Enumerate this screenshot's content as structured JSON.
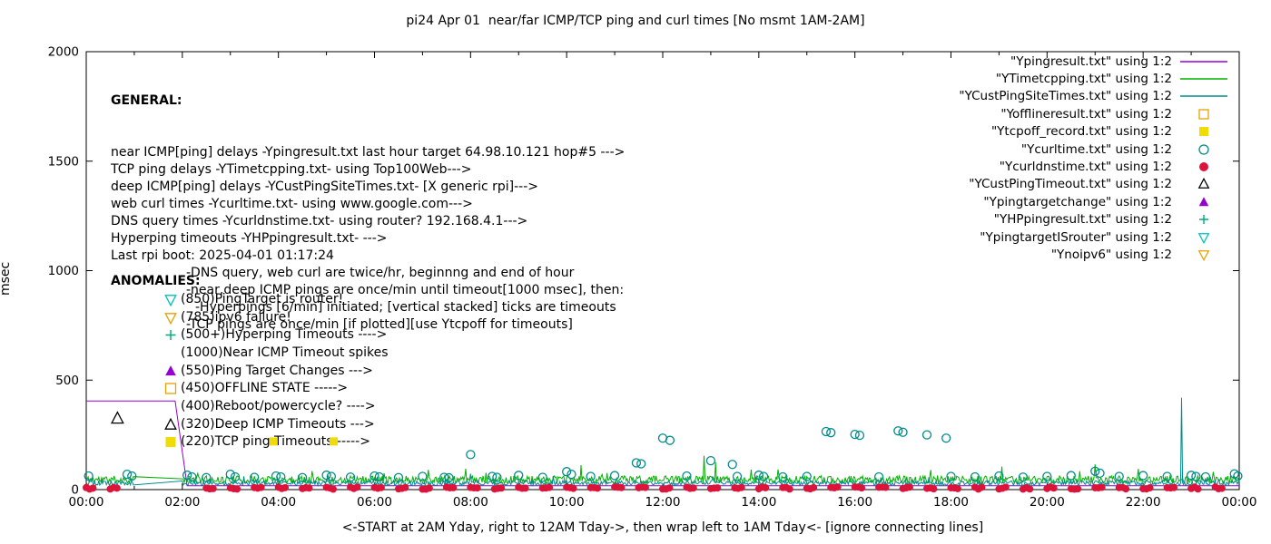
{
  "title": "pi24 Apr 01  near/far ICMP/TCP ping and curl times [No msmt 1AM-2AM]",
  "general": {
    "header": "GENERAL:",
    "lines": [
      {
        "text": "near ICMP[ping] delays -Ypingresult.txt last hour target 64.98.10.121 hop#5 --->",
        "indent": 0
      },
      {
        "text": "TCP ping delays -YTimetcpping.txt- using Top100Web--->",
        "indent": 0
      },
      {
        "text": "deep ICMP[ping] delays -YCustPingSiteTimes.txt- [X generic rpi]--->",
        "indent": 0
      },
      {
        "text": "web curl times -Ycurltime.txt- using www.google.com--->",
        "indent": 0
      },
      {
        "text": "DNS query times -Ycurldnstime.txt- using router? 192.168.4.1--->",
        "indent": 0
      },
      {
        "text": "Hyperping timeouts -YHPpingresult.txt- --->",
        "indent": 0
      },
      {
        "text": "Last rpi boot: 2025-04-01 01:17:24",
        "indent": 0
      },
      {
        "text": "-DNS query, web curl are twice/hr, beginnng and end of hour",
        "indent": 1
      },
      {
        "text": "-near,deep ICMP pings are once/min until timeout[1000 msec], then:",
        "indent": 1
      },
      {
        "text": "-Hyperpings [6/min] initiated; [vertical stacked] ticks are timeouts",
        "indent": 2
      },
      {
        "text": "-TCP pings are once/min [if plotted][use Ytcpoff for timeouts]",
        "indent": 1
      }
    ]
  },
  "anomalies": {
    "header": "ANOMALIES:",
    "rows": [
      {
        "marker": {
          "shape": "triangle-down-open",
          "color": "#00c0c0"
        },
        "text": "(850)PingTarget is router!"
      },
      {
        "marker": {
          "shape": "triangle-down-open",
          "color": "#e8a000"
        },
        "text": "(785)ipv6 failure!"
      },
      {
        "marker": {
          "shape": "plus",
          "color": "#00a878"
        },
        "text": "(500+)Hyperping Timeouts ---->"
      },
      {
        "marker": null,
        "text": "(1000)Near ICMP Timeout spikes"
      },
      {
        "marker": {
          "shape": "triangle-up-filled",
          "color": "#9400d3"
        },
        "text": "(550)Ping Target Changes --->"
      },
      {
        "marker": {
          "shape": "square-open",
          "color": "#e8a000"
        },
        "text": "(450)OFFLINE STATE ----->"
      },
      {
        "marker": null,
        "text": "(400)Reboot/powercycle? ---->"
      },
      {
        "marker": {
          "shape": "triangle-up-open",
          "color": "#000000"
        },
        "text": "(320)Deep ICMP Timeouts --->"
      },
      {
        "marker": {
          "shape": "square-filled",
          "color": "#f0dc00"
        },
        "text": "(220)TCP ping Timeouts ----->"
      }
    ]
  },
  "legend": {
    "entries": [
      {
        "label": "\"Ypingresult.txt\" using 1:2",
        "sample": {
          "kind": "line",
          "color": "#9400d3"
        }
      },
      {
        "label": "\"YTimetcpping.txt\" using 1:2",
        "sample": {
          "kind": "line",
          "color": "#00b000"
        }
      },
      {
        "label": "\"YCustPingSiteTimes.txt\" using 1:2",
        "sample": {
          "kind": "line",
          "color": "#008b8b"
        }
      },
      {
        "label": "\"Yofflineresult.txt\" using 1:2",
        "sample": {
          "kind": "marker",
          "shape": "square-open",
          "color": "#e8a000"
        }
      },
      {
        "label": "\"Ytcpoff_record.txt\" using 1:2",
        "sample": {
          "kind": "marker",
          "shape": "square-filled",
          "color": "#f0dc00"
        }
      },
      {
        "label": "\"Ycurltime.txt\" using 1:2",
        "sample": {
          "kind": "marker",
          "shape": "circle-open",
          "color": "#008b8b"
        }
      },
      {
        "label": "\"Ycurldnstime.txt\" using 1:2",
        "sample": {
          "kind": "marker",
          "shape": "circle-filled",
          "color": "#dc143c"
        }
      },
      {
        "label": "\"YCustPingTimeout.txt\" using 1:2",
        "sample": {
          "kind": "marker",
          "shape": "triangle-up-open",
          "color": "#000000"
        }
      },
      {
        "label": "\"Ypingtargetchange\" using 1:2",
        "sample": {
          "kind": "marker",
          "shape": "triangle-up-filled",
          "color": "#9400d3"
        }
      },
      {
        "label": "\"YHPpingresult.txt\" using 1:2",
        "sample": {
          "kind": "marker",
          "shape": "plus",
          "color": "#00a878"
        }
      },
      {
        "label": "\"YpingtargetISrouter\" using 1:2",
        "sample": {
          "kind": "marker",
          "shape": "triangle-down-open",
          "color": "#00c0c0"
        }
      },
      {
        "label": "\"Ynoipv6\" using 1:2",
        "sample": {
          "kind": "marker",
          "shape": "triangle-down-open",
          "color": "#e8a000"
        }
      }
    ]
  },
  "chart_data": {
    "type": "line",
    "title": "pi24 Apr 01  near/far ICMP/TCP ping and curl times [No msmt 1AM-2AM]",
    "xlabel": "<-START at 2AM Yday, right to 12AM Tday->, then wrap left to 1AM Tday<- [ignore connecting lines]",
    "ylabel": "msec",
    "xlim": [
      0,
      24
    ],
    "ylim": [
      0,
      2000
    ],
    "x_ticks": [
      "00:00",
      "02:00",
      "04:00",
      "06:00",
      "08:00",
      "10:00",
      "12:00",
      "14:00",
      "16:00",
      "18:00",
      "20:00",
      "22:00",
      "00:00"
    ],
    "y_ticks": [
      0,
      500,
      1000,
      1500,
      2000
    ],
    "grid": false,
    "legend_position": "top-right",
    "series": [
      {
        "name": "\"Ypingresult.txt\" using 1:2",
        "kind": "line",
        "color": "#9400d3",
        "points": [
          [
            0,
            405
          ],
          [
            1.85,
            405
          ],
          [
            2.1,
            18
          ],
          [
            24,
            18
          ]
        ]
      },
      {
        "name": "\"YTimetcpping.txt\" using 1:2",
        "kind": "noisy-line",
        "color": "#00b000",
        "base": 46,
        "amp": 17,
        "burst": 45,
        "seed": 11,
        "x0": 0,
        "x1": 24,
        "step": 0.02,
        "gap": [
          1.0,
          2.0
        ],
        "spikes": [
          [
            7.9,
            95
          ],
          [
            10.3,
            112
          ],
          [
            12.85,
            155
          ],
          [
            13.1,
            125
          ],
          [
            14.4,
            92
          ],
          [
            19.05,
            105
          ],
          [
            21.0,
            115
          ],
          [
            21.9,
            95
          ]
        ]
      },
      {
        "name": "\"YCustPingSiteTimes.txt\" using 1:2",
        "kind": "noisy-line",
        "color": "#008b8b",
        "base": 30,
        "amp": 11,
        "burst": 28,
        "seed": 5,
        "x0": 0,
        "x1": 24,
        "step": 0.02,
        "gap": [
          1.0,
          2.0
        ],
        "spikes": [
          [
            8.0,
            72
          ],
          [
            22.8,
            420
          ]
        ]
      },
      {
        "name": "\"Ycurltime.txt\" using 1:2",
        "kind": "scatter",
        "shape": "circle-open",
        "color": "#008b8b",
        "size": 4.5,
        "points": [
          [
            0.05,
            62
          ],
          [
            0.85,
            70
          ],
          [
            0.95,
            62
          ],
          [
            2.1,
            66
          ],
          [
            2.2,
            58
          ],
          [
            2.5,
            55
          ],
          [
            3.0,
            70
          ],
          [
            3.1,
            58
          ],
          [
            3.5,
            56
          ],
          [
            3.95,
            62
          ],
          [
            4.05,
            58
          ],
          [
            4.5,
            55
          ],
          [
            5.0,
            66
          ],
          [
            5.1,
            60
          ],
          [
            5.5,
            57
          ],
          [
            6.0,
            62
          ],
          [
            6.1,
            58
          ],
          [
            6.5,
            55
          ],
          [
            7.0,
            60
          ],
          [
            7.45,
            56
          ],
          [
            7.55,
            54
          ],
          [
            8.0,
            160
          ],
          [
            8.45,
            60
          ],
          [
            8.55,
            56
          ],
          [
            9.0,
            65
          ],
          [
            9.5,
            56
          ],
          [
            10.0,
            82
          ],
          [
            10.1,
            70
          ],
          [
            10.5,
            60
          ],
          [
            11.0,
            64
          ],
          [
            11.45,
            122
          ],
          [
            11.55,
            118
          ],
          [
            12.0,
            235
          ],
          [
            12.15,
            225
          ],
          [
            12.5,
            62
          ],
          [
            13.0,
            132
          ],
          [
            13.45,
            115
          ],
          [
            13.55,
            60
          ],
          [
            14.0,
            66
          ],
          [
            14.1,
            60
          ],
          [
            14.5,
            58
          ],
          [
            15.0,
            60
          ],
          [
            15.4,
            265
          ],
          [
            15.5,
            260
          ],
          [
            16.0,
            252
          ],
          [
            16.1,
            248
          ],
          [
            16.5,
            58
          ],
          [
            16.9,
            268
          ],
          [
            17.0,
            262
          ],
          [
            17.5,
            250
          ],
          [
            17.9,
            235
          ],
          [
            18.0,
            60
          ],
          [
            18.5,
            58
          ],
          [
            19.0,
            62
          ],
          [
            19.5,
            57
          ],
          [
            20.0,
            60
          ],
          [
            20.5,
            64
          ],
          [
            21.0,
            84
          ],
          [
            21.1,
            75
          ],
          [
            21.5,
            60
          ],
          [
            22.0,
            64
          ],
          [
            22.5,
            60
          ],
          [
            23.0,
            65
          ],
          [
            23.1,
            60
          ],
          [
            23.3,
            58
          ],
          [
            23.9,
            72
          ],
          [
            23.97,
            62
          ]
        ]
      },
      {
        "name": "\"Ycurldnstime.txt\" using 1:2",
        "kind": "scatter-cluster",
        "shape": "circle-filled",
        "color": "#dc143c",
        "size": 4,
        "every": 0.5,
        "from": 0,
        "to": 23.9,
        "skip": [
          1.0,
          2.05
        ],
        "value": 7,
        "jitter": 5,
        "count": 3,
        "dx": 0.07,
        "seed": 3
      },
      {
        "name": "\"Ytcpoff_record.txt\" using 1:2",
        "kind": "scatter",
        "shape": "square-filled",
        "color": "#f0dc00",
        "size": 4.5,
        "points": [
          [
            3.9,
            220
          ],
          [
            5.15,
            220
          ]
        ]
      },
      {
        "name": "\"YCustPingTimeout.txt\" using 1:2",
        "kind": "scatter",
        "shape": "triangle-up-open",
        "color": "#000000",
        "size": 6,
        "points": [
          [
            0.65,
            325
          ]
        ]
      }
    ]
  }
}
